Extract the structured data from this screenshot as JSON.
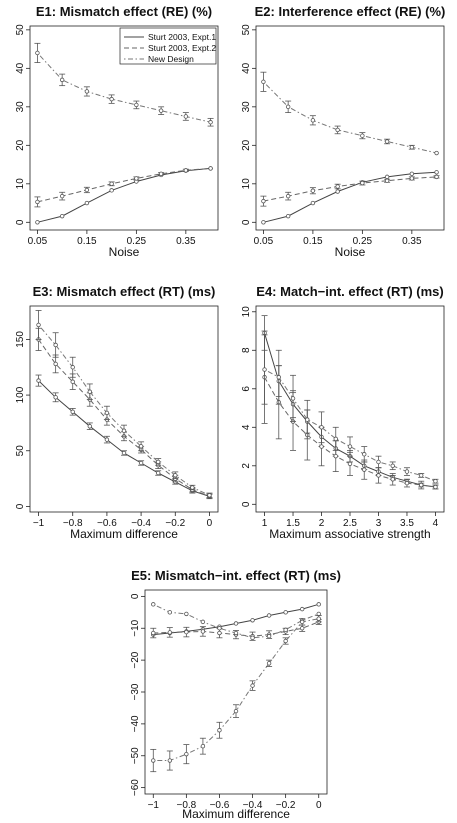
{
  "legend": [
    "Sturt 2003, Expt.1",
    "Sturt 2003, Expt.2",
    "New Design"
  ],
  "colors": {
    "expt1": "#444444",
    "expt2": "#666666",
    "new": "#777777",
    "axis": "#222222",
    "point": "#555555"
  },
  "chart_data": [
    {
      "type": "line",
      "title": "E1: Mismatch effect (RE) (%)",
      "xlabel": "Noise",
      "xlim": [
        0.035,
        0.415
      ],
      "ylim": [
        -2,
        51
      ],
      "xticks": [
        0.05,
        0.15,
        0.25,
        0.35
      ],
      "xtick_labels": [
        "0.05",
        "0.15",
        "0.25",
        "0.35"
      ],
      "yticks": [
        0,
        10,
        20,
        30,
        40,
        50
      ],
      "ytick_labels": [
        "0",
        "10",
        "20",
        "30",
        "40",
        "50"
      ],
      "x": [
        0.05,
        0.1,
        0.15,
        0.2,
        0.25,
        0.3,
        0.35,
        0.4
      ],
      "series": [
        {
          "name": "Sturt 2003, Expt.1",
          "style": "solid",
          "values": [
            0,
            1.6,
            5,
            8.3,
            10.6,
            12.3,
            13.4,
            14
          ],
          "err": [
            0,
            0,
            0,
            0,
            0,
            0,
            0,
            0
          ]
        },
        {
          "name": "Sturt 2003, Expt.2",
          "style": "dashed",
          "values": [
            5.3,
            6.8,
            8.4,
            10,
            11.4,
            12.6,
            13.5,
            14
          ],
          "err": [
            1.3,
            1,
            0.7,
            0.5,
            0.4,
            0.3,
            0.3,
            0
          ]
        },
        {
          "name": "New Design",
          "style": "dotdash",
          "values": [
            44,
            37,
            34,
            32,
            30.5,
            29,
            27.5,
            26
          ],
          "err": [
            2.5,
            1.5,
            1.2,
            1.1,
            1,
            1,
            1,
            1
          ]
        }
      ],
      "legend_position": "top-right"
    },
    {
      "type": "line",
      "title": "E2: Interference effect (RE) (%)",
      "xlabel": "Noise",
      "xlim": [
        0.035,
        0.415
      ],
      "ylim": [
        -2,
        51
      ],
      "xticks": [
        0.05,
        0.15,
        0.25,
        0.35
      ],
      "xtick_labels": [
        "0.05",
        "0.15",
        "0.25",
        "0.35"
      ],
      "yticks": [
        0,
        10,
        20,
        30,
        40,
        50
      ],
      "ytick_labels": [
        "0",
        "10",
        "20",
        "30",
        "40",
        "50"
      ],
      "x": [
        0.05,
        0.1,
        0.15,
        0.2,
        0.25,
        0.3,
        0.35,
        0.4
      ],
      "series": [
        {
          "name": "Sturt 2003, Expt.1",
          "style": "solid",
          "values": [
            0,
            1.6,
            5,
            8,
            10.4,
            11.8,
            12.6,
            13
          ],
          "err": [
            0,
            0,
            0,
            0,
            0,
            0,
            0,
            0
          ]
        },
        {
          "name": "Sturt 2003, Expt.2",
          "style": "dashed",
          "values": [
            5.5,
            6.8,
            8.2,
            9.3,
            10.2,
            10.8,
            11.4,
            11.8
          ],
          "err": [
            1.3,
            1,
            0.8,
            0.6,
            0.5,
            0.4,
            0.4,
            0.3
          ]
        },
        {
          "name": "New Design",
          "style": "dotdash",
          "values": [
            36.5,
            30,
            26.5,
            24,
            22.5,
            21,
            19.5,
            18
          ],
          "err": [
            2.5,
            1.5,
            1.2,
            1,
            0.8,
            0.6,
            0.5,
            0
          ]
        }
      ]
    },
    {
      "type": "line",
      "title": "E3: Mismatch effect (RT) (ms)",
      "xlabel": "Maximum difference",
      "xlim": [
        -1.05,
        0.05
      ],
      "ylim": [
        -5,
        180
      ],
      "xticks": [
        -1,
        -0.8,
        -0.6,
        -0.4,
        -0.2,
        0
      ],
      "xtick_labels": [
        "−1",
        "−0.8",
        "−0.6",
        "−0.4",
        "−0.2",
        "0"
      ],
      "yticks": [
        0,
        50,
        100,
        150
      ],
      "ytick_labels": [
        "0",
        "50",
        "100",
        "150"
      ],
      "x": [
        -1,
        -0.9,
        -0.8,
        -0.7,
        -0.6,
        -0.5,
        -0.4,
        -0.3,
        -0.2,
        -0.1,
        0
      ],
      "series": [
        {
          "name": "Sturt 2003, Expt.1",
          "style": "solid",
          "values": [
            113,
            98,
            85,
            72,
            60,
            48,
            39,
            30,
            22,
            14,
            9
          ],
          "err": [
            5,
            4,
            3,
            3,
            3,
            2,
            2,
            2,
            2,
            2,
            2
          ]
        },
        {
          "name": "Sturt 2003, Expt.2",
          "style": "dashed",
          "values": [
            150,
            128,
            112,
            96,
            78,
            63,
            51,
            37,
            25,
            15,
            9
          ],
          "err": [
            10,
            8,
            7,
            6,
            5,
            4,
            3,
            3,
            3,
            2,
            2
          ]
        },
        {
          "name": "New Design",
          "style": "dotdash",
          "values": [
            163,
            145,
            125,
            103,
            84,
            68,
            54,
            40,
            28,
            17,
            10
          ],
          "err": [
            13,
            11,
            9,
            7,
            6,
            5,
            4,
            3,
            3,
            2,
            2
          ]
        }
      ]
    },
    {
      "type": "line",
      "title": "E4: Match−int. effect (RT) (ms)",
      "xlabel": "Maximum associative strength",
      "xlim": [
        0.85,
        4.15
      ],
      "ylim": [
        -0.4,
        10.3
      ],
      "xticks": [
        1,
        1.5,
        2,
        2.5,
        3,
        3.5,
        4
      ],
      "xtick_labels": [
        "1",
        "1.5",
        "2",
        "2.5",
        "3",
        "3.5",
        "4"
      ],
      "yticks": [
        0,
        2,
        4,
        6,
        8,
        10
      ],
      "ytick_labels": [
        "0",
        "2",
        "4",
        "6",
        "8",
        "10"
      ],
      "x": [
        1,
        1.25,
        1.5,
        1.75,
        2,
        2.25,
        2.5,
        2.75,
        3,
        3.25,
        3.5,
        3.75,
        4
      ],
      "series": [
        {
          "name": "Sturt 2003, Expt.1",
          "style": "solid",
          "values": [
            8.9,
            6.4,
            5.2,
            4.3,
            3.5,
            2.9,
            2.5,
            2,
            1.7,
            1.4,
            1.2,
            1,
            0.9
          ],
          "err": [
            0.9,
            0.8,
            0.7,
            0.6,
            0.5,
            0.4,
            0.3,
            0.2,
            0.2,
            0.1,
            0.1,
            0.1,
            0.1
          ]
        },
        {
          "name": "Sturt 2003, Expt.2",
          "style": "dashed",
          "values": [
            6.6,
            5.3,
            4.3,
            3.6,
            3,
            2.5,
            2.1,
            1.8,
            1.5,
            1.3,
            1.1,
            1,
            0.9
          ],
          "err": [
            2.4,
            1.9,
            1.5,
            1.3,
            1,
            0.8,
            0.6,
            0.5,
            0.4,
            0.3,
            0.2,
            0.2,
            0.1
          ]
        },
        {
          "name": "New Design",
          "style": "dotdash",
          "values": [
            7,
            6.6,
            5.5,
            4.4,
            4,
            3.4,
            3,
            2.6,
            2.2,
            2,
            1.7,
            1.5,
            1.2
          ],
          "err": [
            1.8,
            1.4,
            1.2,
            1,
            0.8,
            0.6,
            0.5,
            0.4,
            0.3,
            0.2,
            0.2,
            0.1,
            0.1
          ]
        }
      ]
    },
    {
      "type": "line",
      "title": "E5: Mismatch−int. effect (RT) (ms)",
      "xlabel": "Maximum difference",
      "xlim": [
        -1.05,
        0.05
      ],
      "ylim": [
        -62,
        2
      ],
      "xticks": [
        -1,
        -0.8,
        -0.6,
        -0.4,
        -0.2,
        0
      ],
      "xtick_labels": [
        "−1",
        "−0.8",
        "−0.6",
        "−0.4",
        "−0.2",
        "0"
      ],
      "yticks": [
        0,
        -10,
        -20,
        -30,
        -40,
        -50,
        -60
      ],
      "ytick_labels": [
        "0",
        "−10",
        "−20",
        "−30",
        "−40",
        "−50",
        "−60"
      ],
      "x": [
        -1,
        -0.9,
        -0.8,
        -0.7,
        -0.6,
        -0.5,
        -0.4,
        -0.3,
        -0.2,
        -0.1,
        0
      ],
      "series": [
        {
          "name": "Sturt 2003, Expt.1",
          "style": "solid",
          "values": [
            -12,
            -11.5,
            -11,
            -10.3,
            -9.5,
            -8.5,
            -7.5,
            -6,
            -5,
            -4,
            -2.5
          ],
          "err": [
            0,
            0,
            0,
            0,
            0,
            0,
            0,
            0,
            0,
            0,
            0
          ]
        },
        {
          "name": "Sturt 2003, Expt.2",
          "style": "dashed",
          "values": [
            -11.5,
            -11.3,
            -11.2,
            -11,
            -11.5,
            -12,
            -12.5,
            -12,
            -11,
            -10,
            -8
          ],
          "err": [
            1.5,
            1.5,
            1.5,
            1.5,
            1.5,
            1.3,
            1.3,
            1.2,
            1,
            1,
            0.8
          ]
        },
        {
          "name": "New Design",
          "style": "dotdash",
          "values": [
            -2.5,
            -5,
            -5.5,
            -8,
            -10,
            -11.5,
            -13,
            -12.5,
            -10.5,
            -7.5,
            -5.5
          ],
          "err": [
            0,
            0,
            0,
            0,
            0,
            0,
            0,
            0,
            0,
            0,
            0
          ]
        },
        {
          "name": "",
          "style": "dotdash",
          "values": [
            -51.5,
            -51.5,
            -49.5,
            -47,
            -42,
            -36,
            -28,
            -21,
            -14,
            -8,
            -7
          ],
          "err": [
            3.5,
            3,
            3,
            2.5,
            2.5,
            2,
            1.5,
            1,
            1,
            1,
            1
          ]
        }
      ]
    }
  ]
}
